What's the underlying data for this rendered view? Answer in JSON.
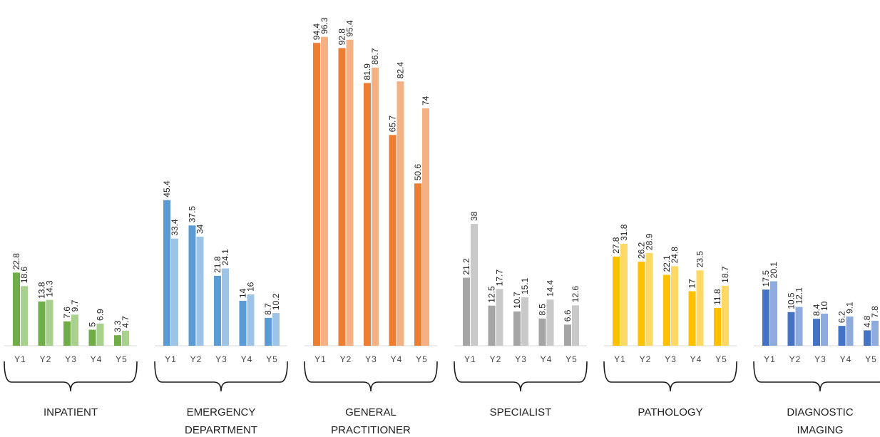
{
  "chart_data": {
    "type": "bar",
    "categories": [
      "Y1",
      "Y2",
      "Y3",
      "Y4",
      "Y5"
    ],
    "ylim": [
      0,
      100
    ],
    "grid": false,
    "groups": [
      {
        "label_lines": [
          "INPATIENT"
        ],
        "colors": [
          "#70ad47",
          "#a9d18e"
        ],
        "series": [
          {
            "values": [
              22.8,
              13.8,
              7.6,
              5,
              3.3
            ]
          },
          {
            "values": [
              18.6,
              14.3,
              9.7,
              6.9,
              4.7
            ]
          }
        ]
      },
      {
        "label_lines": [
          "EMERGENCY",
          "DEPARTMENT"
        ],
        "colors": [
          "#5b9bd5",
          "#9dc3e6"
        ],
        "series": [
          {
            "values": [
              45.4,
              37.5,
              21.8,
              14,
              8.7
            ]
          },
          {
            "values": [
              33.4,
              34,
              24.1,
              16,
              10.2
            ]
          }
        ]
      },
      {
        "label_lines": [
          "GENERAL",
          "PRACTITIONER"
        ],
        "colors": [
          "#ed7d31",
          "#f4b183"
        ],
        "series": [
          {
            "values": [
              94.4,
              92.8,
              81.9,
              65.7,
              50.6
            ]
          },
          {
            "values": [
              96.3,
              95.4,
              86.7,
              82.4,
              74
            ]
          }
        ]
      },
      {
        "label_lines": [
          "SPECIALIST"
        ],
        "colors": [
          "#a5a5a5",
          "#c9c9c9"
        ],
        "series": [
          {
            "values": [
              21.2,
              12.5,
              10.7,
              8.5,
              6.6
            ]
          },
          {
            "values": [
              38,
              17.7,
              15.1,
              14.4,
              12.6
            ]
          }
        ]
      },
      {
        "label_lines": [
          "PATHOLOGY"
        ],
        "colors": [
          "#ffc000",
          "#ffd966"
        ],
        "series": [
          {
            "values": [
              27.8,
              26.2,
              22.1,
              17,
              11.8
            ]
          },
          {
            "values": [
              31.8,
              28.9,
              24.8,
              23.5,
              18.7
            ]
          }
        ]
      },
      {
        "label_lines": [
          "DIAGNOSTIC",
          "IMAGING"
        ],
        "colors": [
          "#4472c4",
          "#8faadc"
        ],
        "series": [
          {
            "values": [
              17.5,
              10.5,
              8.4,
              6.2,
              4.8
            ]
          },
          {
            "values": [
              20.1,
              12.1,
              10,
              9.1,
              7.8
            ]
          }
        ]
      }
    ]
  }
}
